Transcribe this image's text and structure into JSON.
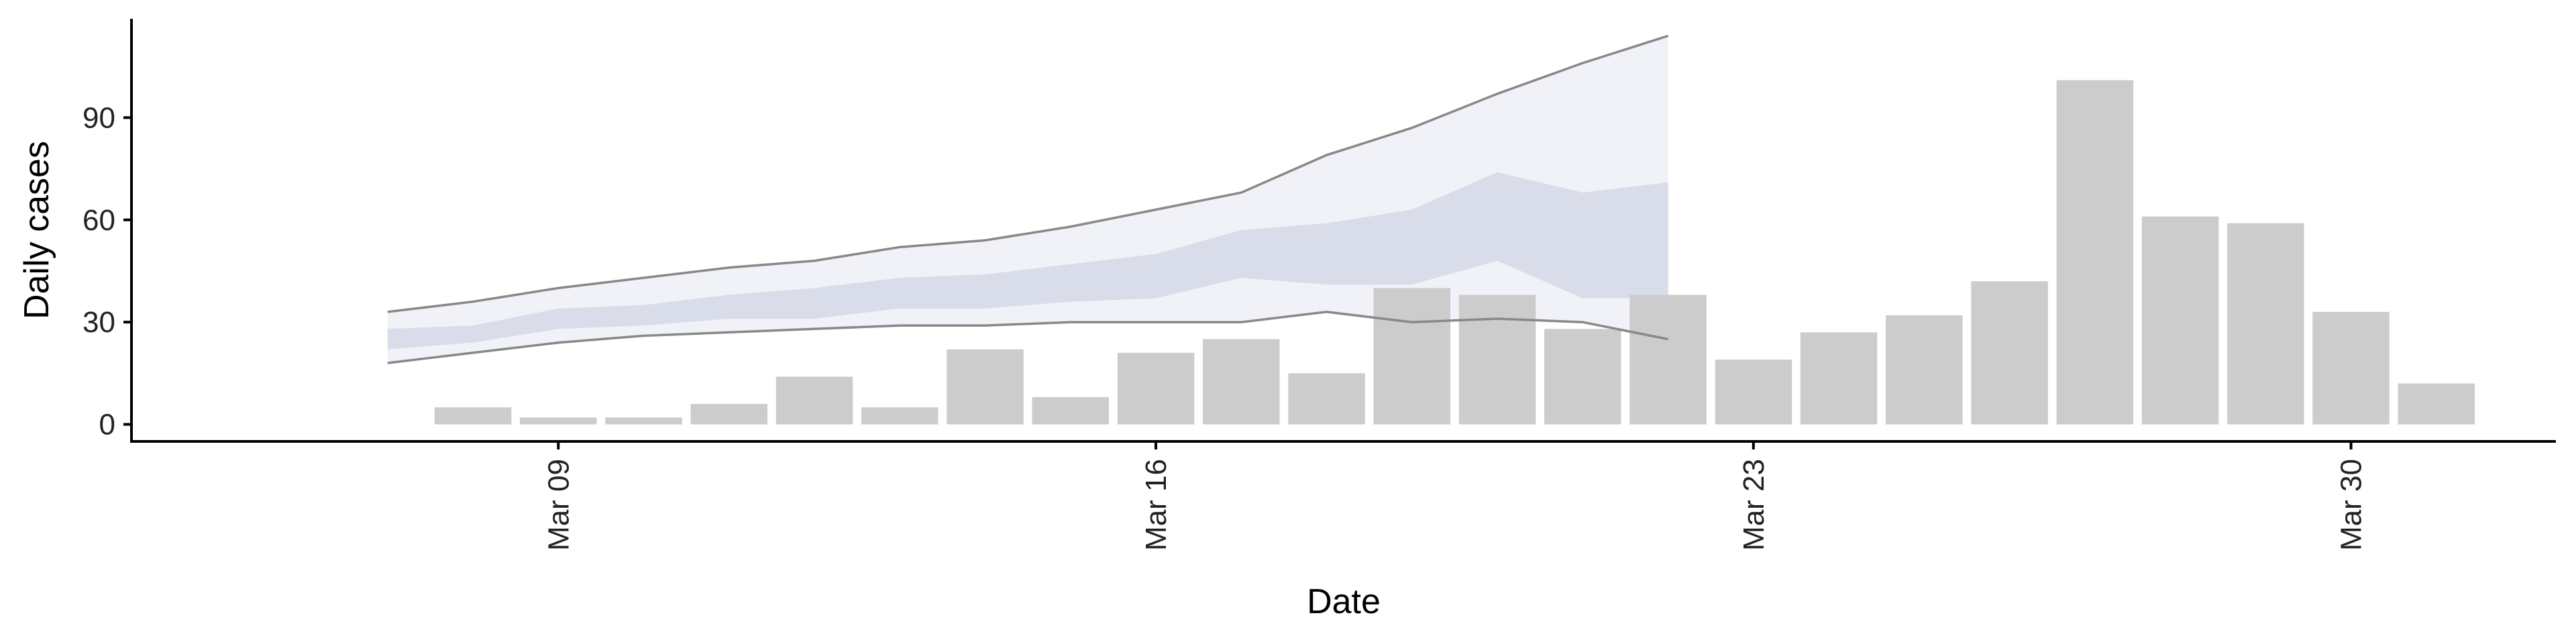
{
  "chart_data": {
    "type": "bar",
    "xlabel": "Date",
    "ylabel": "Daily cases",
    "x_tick_labels": [
      "Mar 09",
      "Mar 16",
      "Mar 23",
      "Mar 30"
    ],
    "y_tick_labels": [
      "0",
      "30",
      "60",
      "90"
    ],
    "y_ticks": [
      0,
      30,
      60,
      90
    ],
    "ylim": [
      -5,
      119
    ],
    "xlim": [
      "2020-03-04",
      "2020-04-01"
    ],
    "grid": false,
    "legend": "none",
    "colors": {
      "bars": "#cccccc",
      "forecast_band_outer": "#f1f2f7",
      "forecast_band_inner": "#d9dce9",
      "forecast_line": "#888888"
    },
    "observed": {
      "dates": [
        "2020-03-08",
        "2020-03-09",
        "2020-03-10",
        "2020-03-11",
        "2020-03-12",
        "2020-03-13",
        "2020-03-14",
        "2020-03-15",
        "2020-03-16",
        "2020-03-17",
        "2020-03-18",
        "2020-03-19",
        "2020-03-20",
        "2020-03-21",
        "2020-03-22",
        "2020-03-23",
        "2020-03-24",
        "2020-03-25",
        "2020-03-26",
        "2020-03-27",
        "2020-03-28",
        "2020-03-29",
        "2020-03-30",
        "2020-03-31"
      ],
      "values": [
        5,
        2,
        2,
        6,
        14,
        5,
        22,
        8,
        21,
        25,
        15,
        40,
        38,
        28,
        38,
        19,
        27,
        32,
        42,
        101,
        61,
        59,
        33,
        12
      ]
    },
    "forecast": {
      "dates": [
        "2020-03-07",
        "2020-03-08",
        "2020-03-09",
        "2020-03-10",
        "2020-03-11",
        "2020-03-12",
        "2020-03-13",
        "2020-03-14",
        "2020-03-15",
        "2020-03-16",
        "2020-03-17",
        "2020-03-18",
        "2020-03-19",
        "2020-03-20",
        "2020-03-21",
        "2020-03-22"
      ],
      "upper_90": [
        33,
        36,
        40,
        43,
        46,
        48,
        52,
        54,
        58,
        63,
        68,
        79,
        87,
        97,
        106,
        114
      ],
      "lower_90": [
        18,
        21,
        24,
        26,
        27,
        28,
        29,
        29,
        30,
        30,
        30,
        33,
        30,
        31,
        30,
        25
      ],
      "upper_50": [
        28,
        29,
        34,
        35,
        38,
        40,
        43,
        44,
        47,
        50,
        57,
        59,
        63,
        74,
        68,
        71
      ],
      "lower_50": [
        22,
        24,
        28,
        29,
        31,
        31,
        34,
        34,
        36,
        37,
        43,
        41,
        41,
        48,
        37,
        37
      ]
    }
  }
}
